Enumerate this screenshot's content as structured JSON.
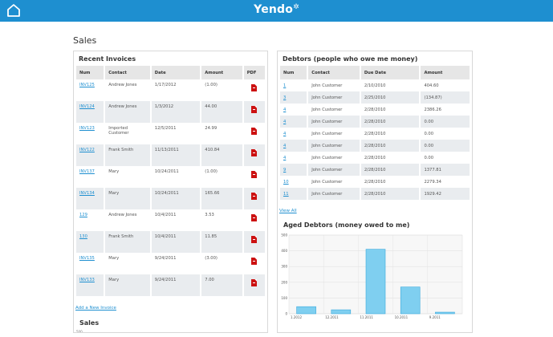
{
  "header": {
    "logo": "Yendo",
    "logo_mark": "✲"
  },
  "page": {
    "title": "Sales"
  },
  "recent_invoices": {
    "title": "Recent Invoices",
    "columns": [
      "Num",
      "Contact",
      "Date",
      "Amount",
      "PDF"
    ],
    "rows": [
      {
        "num": "INV125",
        "contact": "Andrew Jones",
        "date": "1/17/2012",
        "amount": "(1.00)"
      },
      {
        "num": "INV124",
        "contact": "Andrew Jones",
        "date": "1/3/2012",
        "amount": "44.00"
      },
      {
        "num": "INV123",
        "contact": "Imported Customer",
        "date": "12/5/2011",
        "amount": "24.99"
      },
      {
        "num": "INV122",
        "contact": "Frank Smith",
        "date": "11/13/2011",
        "amount": "410.84"
      },
      {
        "num": "INV137",
        "contact": "Mary",
        "date": "10/24/2011",
        "amount": "(1.00)"
      },
      {
        "num": "INV134",
        "contact": "Mary",
        "date": "10/24/2011",
        "amount": "165.66"
      },
      {
        "num": "129",
        "contact": "Andrew Jones",
        "date": "10/4/2011",
        "amount": "3.53"
      },
      {
        "num": "130",
        "contact": "Frank Smith",
        "date": "10/4/2011",
        "amount": "11.85"
      },
      {
        "num": "INV135",
        "contact": "Mary",
        "date": "9/24/2011",
        "amount": "(3.00)"
      },
      {
        "num": "INV133",
        "contact": "Mary",
        "date": "9/24/2011",
        "amount": "7.00"
      }
    ],
    "add_link": "Add a New Invoice",
    "sales_subtitle": "Sales",
    "sales_axis_top": "500"
  },
  "debtors": {
    "title": "Debtors (people who owe me money)",
    "columns": [
      "Num",
      "Contact",
      "Due Date",
      "Amount"
    ],
    "rows": [
      {
        "num": "1",
        "contact": "John Customer",
        "due": "2/10/2010",
        "amount": "404.60"
      },
      {
        "num": "3",
        "contact": "John Customer",
        "due": "2/25/2010",
        "amount": "(134.87)"
      },
      {
        "num": "4",
        "contact": "John Customer",
        "due": "2/28/2010",
        "amount": "2386.26"
      },
      {
        "num": "4",
        "contact": "John Customer",
        "due": "2/28/2010",
        "amount": "0.00"
      },
      {
        "num": "4",
        "contact": "John Customer",
        "due": "2/28/2010",
        "amount": "0.00"
      },
      {
        "num": "4",
        "contact": "John Customer",
        "due": "2/28/2010",
        "amount": "0.00"
      },
      {
        "num": "4",
        "contact": "John Customer",
        "due": "2/28/2010",
        "amount": "0.00"
      },
      {
        "num": "9",
        "contact": "John Customer",
        "due": "2/28/2010",
        "amount": "1377.81"
      },
      {
        "num": "10",
        "contact": "John Customer",
        "due": "2/28/2010",
        "amount": "2279.34"
      },
      {
        "num": "11",
        "contact": "John Customer",
        "due": "2/28/2010",
        "amount": "1929.42"
      }
    ],
    "view_all": "View All"
  },
  "aged_debtors": {
    "title": "Aged Debtors (money owed to me)"
  },
  "chart_data": {
    "type": "bar",
    "categories": [
      "1.2012",
      "12.2011",
      "11.2011",
      "10.2011",
      "9.2011"
    ],
    "values": [
      45,
      25,
      410,
      170,
      10
    ],
    "ylim": [
      0,
      500
    ],
    "yticks": [
      0,
      100,
      200,
      300,
      400,
      500
    ],
    "grid": true,
    "bar_color": "#7fcff0",
    "bar_stroke": "#3aa9dd"
  }
}
